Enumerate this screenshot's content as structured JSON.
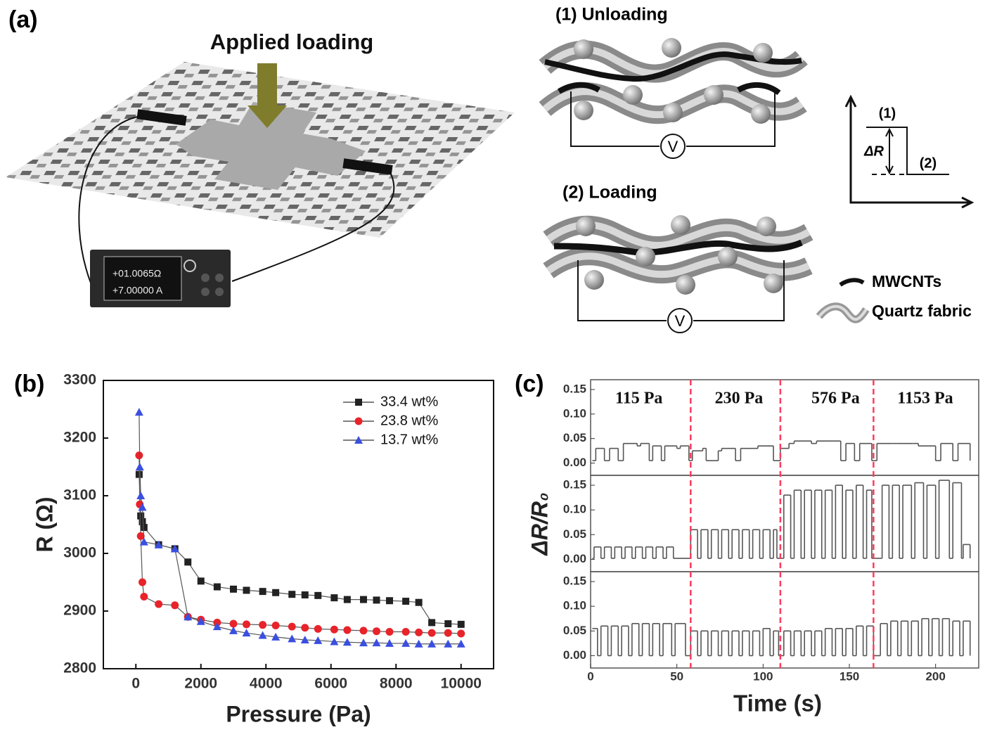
{
  "diagram": {
    "panel_label": "(a)",
    "applied_loading": "Applied loading",
    "meter_reading_1": "+01.0065Ω",
    "meter_reading_2": "+7.00000 A",
    "unloading": "(1) Unloading",
    "loading": "(2) Loading",
    "voltmeter_1": "V",
    "voltmeter_2": "V",
    "inset": {
      "state_1": "(1)",
      "delta": "ΔR",
      "state_2": "(2)"
    },
    "legend": [
      "MWCNTs",
      "Quartz fabric"
    ]
  },
  "chart_data": [
    {
      "type": "scatter-line",
      "panel_label": "(b)",
      "xlabel": "Pressure (Pa)",
      "ylabel": "R (Ω)",
      "xlim": [
        -1000,
        11000
      ],
      "xticks": [
        0,
        2000,
        4000,
        6000,
        8000,
        10000
      ],
      "ylim": [
        2800,
        3300
      ],
      "yticks": [
        2800,
        2900,
        3000,
        3100,
        3200,
        3300
      ],
      "legend": "upper right",
      "series": [
        {
          "name": "33.4 wt%",
          "color": "#222222",
          "marker": "square",
          "x": [
            100,
            150,
            200,
            250,
            700,
            1200,
            1600,
            2000,
            2500,
            3000,
            3400,
            3900,
            4300,
            4800,
            5200,
            5600,
            6100,
            6500,
            7000,
            7400,
            7800,
            8300,
            8700,
            9100,
            9600,
            10000
          ],
          "values": [
            3137,
            3065,
            3055,
            3045,
            3015,
            3008,
            2985,
            2952,
            2942,
            2938,
            2936,
            2934,
            2932,
            2929,
            2928,
            2927,
            2923,
            2920,
            2920,
            2919,
            2918,
            2917,
            2915,
            2880,
            2878,
            2877
          ]
        },
        {
          "name": "23.8 wt%",
          "color": "#e8232a",
          "marker": "circle",
          "x": [
            100,
            120,
            150,
            200,
            250,
            700,
            1200,
            1600,
            2000,
            2500,
            3000,
            3400,
            3900,
            4300,
            4800,
            5200,
            5600,
            6100,
            6500,
            7000,
            7400,
            7800,
            8300,
            8700,
            9100,
            9600,
            10000
          ],
          "values": [
            3170,
            3085,
            3030,
            2950,
            2925,
            2912,
            2910,
            2890,
            2885,
            2880,
            2878,
            2877,
            2876,
            2875,
            2873,
            2871,
            2869,
            2868,
            2867,
            2866,
            2865,
            2864,
            2864,
            2863,
            2862,
            2862,
            2861
          ]
        },
        {
          "name": "13.7 wt%",
          "color": "#3a4fe0",
          "marker": "triangle",
          "x": [
            100,
            120,
            150,
            200,
            250,
            700,
            1200,
            1600,
            2000,
            2500,
            3000,
            3400,
            3900,
            4300,
            4800,
            5200,
            5600,
            6100,
            6500,
            7000,
            7400,
            7800,
            8300,
            8700,
            9100,
            9600,
            10000
          ],
          "values": [
            3245,
            3150,
            3100,
            3080,
            3020,
            3015,
            3008,
            2890,
            2882,
            2873,
            2866,
            2862,
            2858,
            2855,
            2852,
            2850,
            2849,
            2847,
            2846,
            2845,
            2845,
            2844,
            2844,
            2843,
            2843,
            2843,
            2843
          ]
        }
      ]
    },
    {
      "type": "step",
      "panel_label": "(c)",
      "xlabel": "Time (s)",
      "ylabel": "ΔR/R₀",
      "xlim": [
        0,
        225
      ],
      "xticks": [
        0,
        50,
        100,
        150,
        200
      ],
      "ylim": [
        -0.025,
        0.17
      ],
      "yticks": [
        {
          "value": 0,
          "label": "0.00"
        },
        {
          "value": 0.05,
          "label": "0.05"
        },
        {
          "value": 0.1,
          "label": "0.10"
        },
        {
          "value": 0.15,
          "label": "0.15"
        }
      ],
      "vlines": [
        58,
        110,
        164
      ],
      "vline_color": "#ff3b5c",
      "annotations": [
        {
          "x": 28,
          "text": "115 Pa"
        },
        {
          "x": 86,
          "text": "230 Pa"
        },
        {
          "x": 142,
          "text": "576 Pa"
        },
        {
          "x": 194,
          "text": "1153 Pa"
        }
      ],
      "panels": [
        {
          "series": [
            {
              "color": "#555555",
              "x": [
                1,
                3,
                8,
                11,
                16,
                19,
                27,
                29,
                34,
                36,
                41,
                43,
                50,
                52,
                57,
                59,
                65,
                67,
                74,
                76,
                84,
                87,
                95,
                97,
                106,
                110,
                115,
                118,
                128,
                131,
                145,
                148,
                153,
                156,
                163,
                166,
                175,
                178,
                187,
                190,
                200,
                203,
                210,
                213,
                220
              ],
              "values": [
                0.005,
                0.03,
                0.005,
                0.03,
                0.005,
                0.04,
                0.035,
                0.04,
                0.005,
                0.035,
                0.005,
                0.035,
                0.03,
                0.035,
                0.005,
                0.025,
                0.03,
                0.005,
                0.025,
                0.03,
                0.005,
                0.03,
                0.03,
                0.035,
                0.005,
                0.03,
                0.04,
                0.045,
                0.04,
                0.045,
                0.005,
                0.04,
                0.005,
                0.04,
                0.005,
                0.04,
                0.04,
                0.04,
                0.04,
                0.035,
                0.005,
                0.04,
                0.005,
                0.04,
                0.005
              ]
            }
          ]
        },
        {
          "series": [
            {
              "color": "#555555",
              "x": [
                1,
                2,
                6,
                8,
                12,
                14,
                18,
                20,
                24,
                26,
                30,
                32,
                36,
                38,
                42,
                44,
                48,
                58,
                62,
                64,
                68,
                70,
                74,
                76,
                80,
                82,
                86,
                88,
                92,
                94,
                98,
                100,
                104,
                106,
                108,
                112,
                116,
                118,
                122,
                124,
                128,
                130,
                134,
                136,
                140,
                142,
                146,
                148,
                152,
                154,
                158,
                160,
                163,
                169,
                173,
                175,
                179,
                181,
                186,
                188,
                193,
                195,
                200,
                202,
                208,
                210,
                215,
                216,
                220
              ],
              "values": [
                0.002,
                0.025,
                0.002,
                0.025,
                0.002,
                0.025,
                0.002,
                0.025,
                0.002,
                0.025,
                0.002,
                0.025,
                0.002,
                0.025,
                0.002,
                0.025,
                0.002,
                0.06,
                0.002,
                0.06,
                0.002,
                0.06,
                0.002,
                0.06,
                0.002,
                0.06,
                0.002,
                0.06,
                0.002,
                0.06,
                0.002,
                0.06,
                0.002,
                0.06,
                0.002,
                0.13,
                0.002,
                0.14,
                0.002,
                0.14,
                0.002,
                0.14,
                0.002,
                0.14,
                0.002,
                0.15,
                0.002,
                0.14,
                0.002,
                0.15,
                0.002,
                0.14,
                0.002,
                0.15,
                0.002,
                0.15,
                0.002,
                0.15,
                0.002,
                0.155,
                0.002,
                0.15,
                0.002,
                0.16,
                0.002,
                0.155,
                0.002,
                0.03,
                0.002
              ]
            }
          ]
        },
        {
          "series": [
            {
              "color": "#555555",
              "x": [
                1,
                4,
                6,
                10,
                12,
                16,
                18,
                22,
                24,
                28,
                30,
                34,
                36,
                40,
                42,
                47,
                49,
                55,
                58,
                62,
                64,
                68,
                70,
                74,
                76,
                80,
                82,
                86,
                88,
                92,
                94,
                98,
                100,
                104,
                106,
                109,
                112,
                116,
                118,
                122,
                124,
                128,
                130,
                134,
                136,
                140,
                142,
                146,
                148,
                152,
                154,
                158,
                160,
                164,
                168,
                172,
                174,
                178,
                180,
                184,
                186,
                190,
                192,
                196,
                198,
                202,
                204,
                208,
                210,
                214,
                216,
                220
              ],
              "values": [
                0.055,
                0,
                0.06,
                0,
                0.06,
                0,
                0.06,
                0,
                0.065,
                0,
                0.065,
                0,
                0.065,
                0,
                0.065,
                0,
                0.065,
                0,
                0.05,
                0,
                0.05,
                0,
                0.05,
                0,
                0.05,
                0,
                0.05,
                0,
                0.05,
                0,
                0.05,
                0,
                0.055,
                0,
                0.05,
                0,
                0.05,
                0,
                0.05,
                0,
                0.05,
                0,
                0.05,
                0,
                0.055,
                0,
                0.055,
                0,
                0.055,
                0,
                0.06,
                0,
                0.06,
                0,
                0.065,
                0,
                0.07,
                0,
                0.07,
                0,
                0.07,
                0,
                0.075,
                0,
                0.075,
                0,
                0.075,
                0,
                0.07,
                0,
                0.07,
                0
              ]
            }
          ]
        }
      ]
    }
  ]
}
